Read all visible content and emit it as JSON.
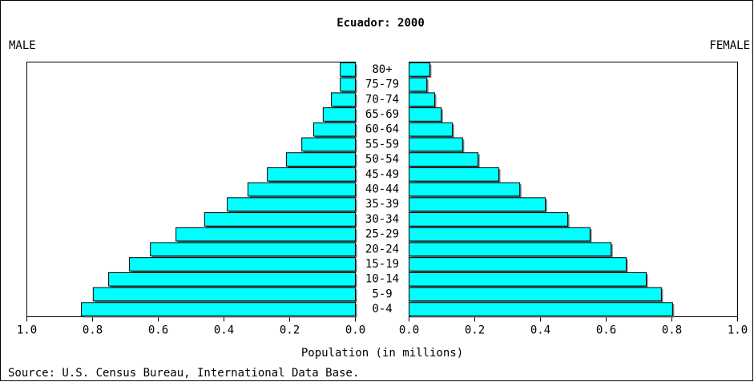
{
  "chart_data": {
    "type": "pyramid",
    "title": "Ecuador: 2000",
    "categories": [
      "80+",
      "75-79",
      "70-74",
      "65-69",
      "60-64",
      "55-59",
      "50-54",
      "45-49",
      "40-44",
      "35-39",
      "30-34",
      "25-29",
      "20-24",
      "15-19",
      "10-14",
      "5-9",
      "0-4"
    ],
    "series": [
      {
        "name": "MALE",
        "color": "#00ffff",
        "values": [
          0.046,
          0.046,
          0.073,
          0.098,
          0.127,
          0.163,
          0.21,
          0.268,
          0.327,
          0.39,
          0.459,
          0.546,
          0.624,
          0.688,
          0.751,
          0.798,
          0.834
        ]
      },
      {
        "name": "FEMALE",
        "color": "#00ffff",
        "values": [
          0.063,
          0.054,
          0.078,
          0.098,
          0.132,
          0.163,
          0.21,
          0.273,
          0.337,
          0.415,
          0.483,
          0.551,
          0.615,
          0.661,
          0.722,
          0.768,
          0.802
        ]
      }
    ],
    "xlim": [
      0,
      1
    ],
    "xticks": [
      {
        "value": 1,
        "label": "1.0"
      },
      0.8,
      0.6,
      0.4,
      0.2,
      {
        "value": 0,
        "label": "0.0"
      }
    ],
    "xlabel": "Population (in millions)",
    "source": "Source: U.S. Census Bureau, International Data Base."
  }
}
